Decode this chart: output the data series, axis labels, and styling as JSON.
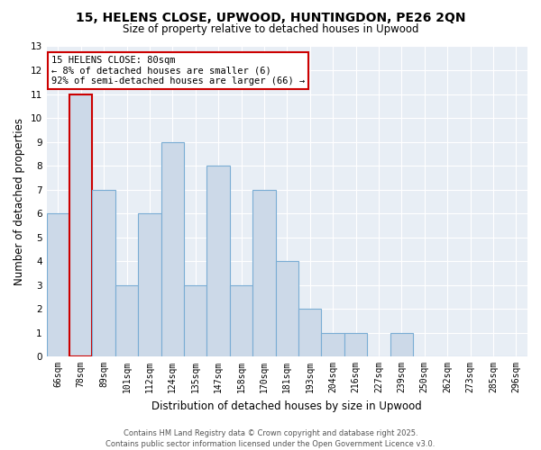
{
  "title": "15, HELENS CLOSE, UPWOOD, HUNTINGDON, PE26 2QN",
  "subtitle": "Size of property relative to detached houses in Upwood",
  "xlabel": "Distribution of detached houses by size in Upwood",
  "ylabel": "Number of detached properties",
  "bins": [
    "66sqm",
    "78sqm",
    "89sqm",
    "101sqm",
    "112sqm",
    "124sqm",
    "135sqm",
    "147sqm",
    "158sqm",
    "170sqm",
    "181sqm",
    "193sqm",
    "204sqm",
    "216sqm",
    "227sqm",
    "239sqm",
    "250sqm",
    "262sqm",
    "273sqm",
    "285sqm",
    "296sqm"
  ],
  "values": [
    6,
    11,
    7,
    3,
    6,
    9,
    3,
    8,
    3,
    7,
    4,
    2,
    1,
    1,
    0,
    1,
    0,
    0,
    0,
    0,
    0
  ],
  "highlight_index": 1,
  "bar_color": "#ccd9e8",
  "bar_edgecolor": "#7aadd4",
  "highlight_edgecolor": "#cc0000",
  "ylim": [
    0,
    13
  ],
  "yticks": [
    0,
    1,
    2,
    3,
    4,
    5,
    6,
    7,
    8,
    9,
    10,
    11,
    12,
    13
  ],
  "annotation_text": "15 HELENS CLOSE: 80sqm\n← 8% of detached houses are smaller (6)\n92% of semi-detached houses are larger (66) →",
  "annotation_box_facecolor": "#ffffff",
  "annotation_box_edgecolor": "#cc0000",
  "footer_text": "Contains HM Land Registry data © Crown copyright and database right 2025.\nContains public sector information licensed under the Open Government Licence v3.0.",
  "background_color": "#ffffff",
  "plot_bg_color": "#e8eef5",
  "grid_color": "#ffffff"
}
